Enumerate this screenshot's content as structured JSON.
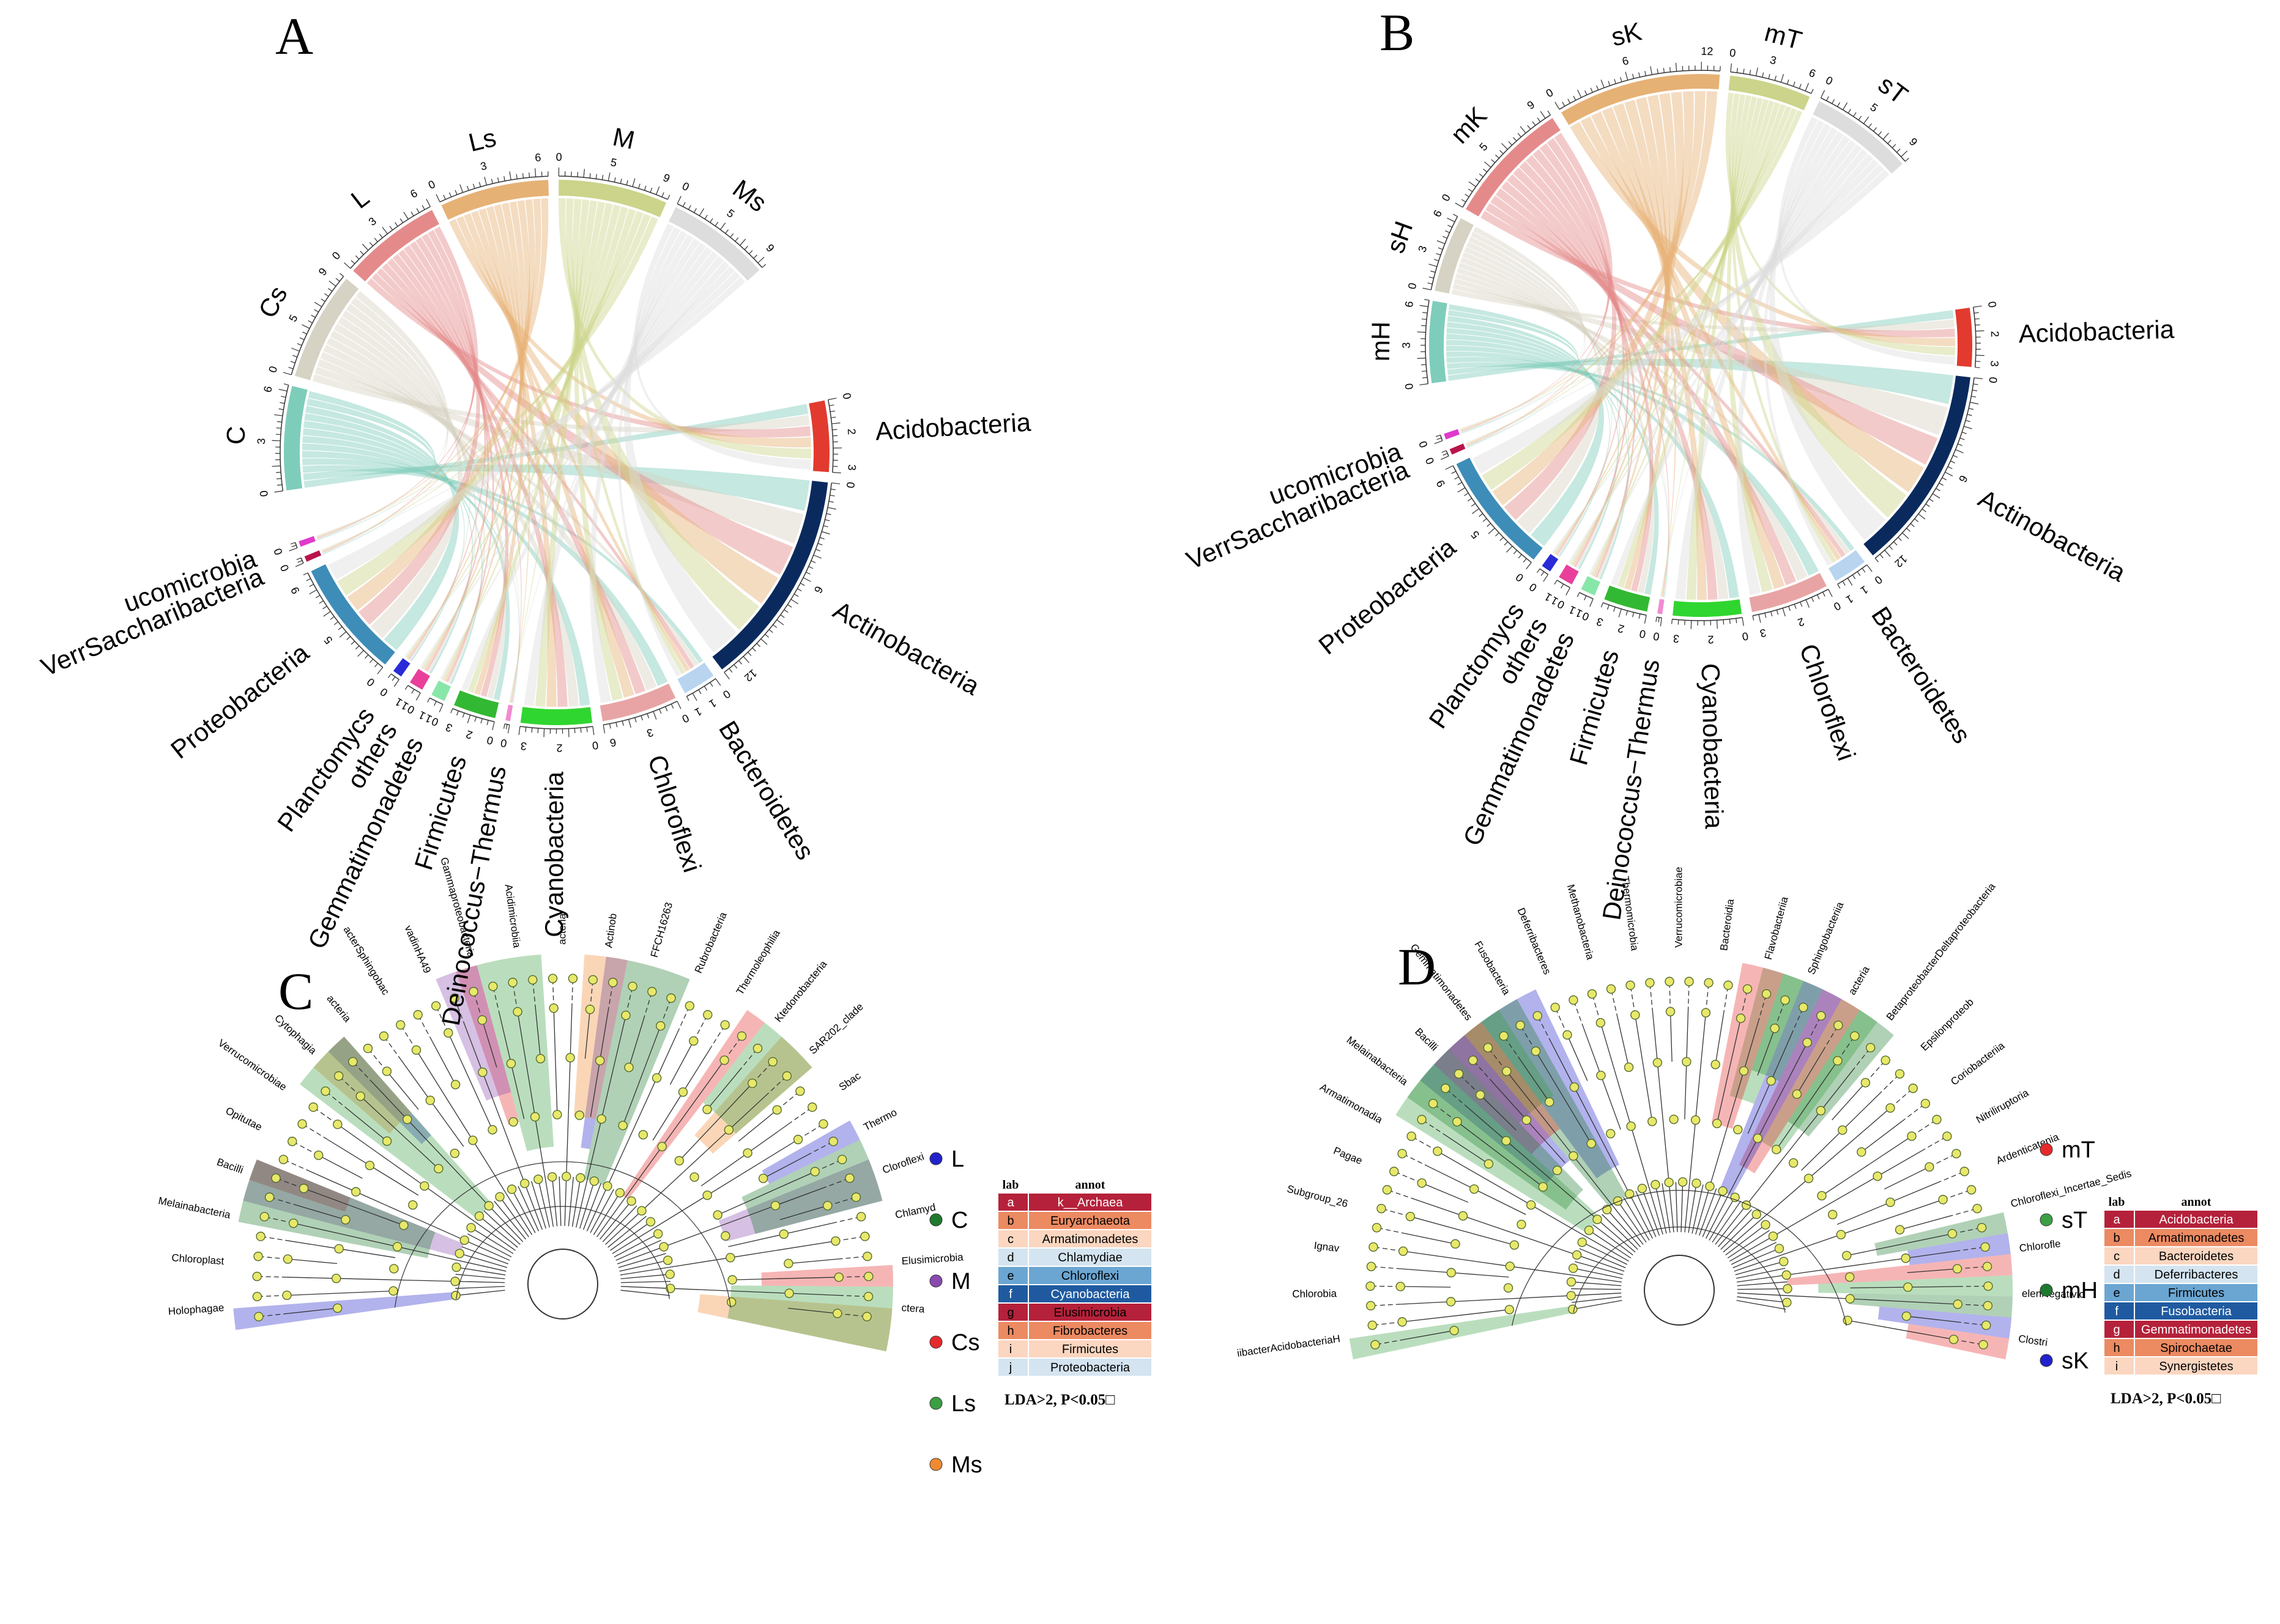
{
  "chart_data": [
    {
      "panel": "A",
      "type": "chord",
      "samples": [
        {
          "name": "C",
          "color": "#7ecdbb",
          "max": 6
        },
        {
          "name": "Cs",
          "color": "#d6d2c4",
          "max": 9
        },
        {
          "name": "L",
          "color": "#e58a8a",
          "max": 6
        },
        {
          "name": "Ls",
          "color": "#e6b175",
          "max": 6
        },
        {
          "name": "M",
          "color": "#cbd48a",
          "max": 9
        },
        {
          "name": "Ms",
          "color": "#dddddd",
          "max": 9
        }
      ],
      "taxa": [
        {
          "name": "Acidobacteria",
          "color": "#e23a2e",
          "max": 3
        },
        {
          "name": "Actinobacteria",
          "color": "#0a2a5e",
          "max": 12
        },
        {
          "name": "Bacteroidetes",
          "color": "#b8d4ef",
          "max": 1
        },
        {
          "name": "Chloroflexi",
          "color": "#e8a4a4",
          "max": 6
        },
        {
          "name": "Cyanobacteria",
          "color": "#2fd62f",
          "max": 3
        },
        {
          "name": "Deinococcus−Thermus",
          "color": "#f28ad0",
          "max": 0
        },
        {
          "name": "Firmicutes",
          "color": "#33b833",
          "max": 3
        },
        {
          "name": "Gemmatimonadetes",
          "color": "#88e6a8",
          "max": 1
        },
        {
          "name": "others",
          "color": "#e8409a",
          "max": 1
        },
        {
          "name": "Planctomycs",
          "color": "#2a2ad8",
          "max": 0
        },
        {
          "name": "Proteobacteria",
          "color": "#3d8db8",
          "max": 9
        },
        {
          "name": "VerrSaccharibacteria",
          "color": "#b8144a",
          "max": 0
        },
        {
          "name": "ucomicrobia",
          "color": "#e03acc",
          "max": 0
        }
      ]
    },
    {
      "panel": "B",
      "type": "chord",
      "samples": [
        {
          "name": "mH",
          "color": "#7ecdbb",
          "max": 6
        },
        {
          "name": "sH",
          "color": "#d6d2c4",
          "max": 6
        },
        {
          "name": "mK",
          "color": "#e58a8a",
          "max": 9
        },
        {
          "name": "sK",
          "color": "#e6b175",
          "max": 12
        },
        {
          "name": "mT",
          "color": "#cbd48a",
          "max": 6
        },
        {
          "name": "sT",
          "color": "#dddddd",
          "max": 9
        }
      ],
      "taxa": [
        {
          "name": "Acidobacteria",
          "color": "#e23a2e",
          "max": 3
        },
        {
          "name": "Actinobacteria",
          "color": "#0a2a5e",
          "max": 12
        },
        {
          "name": "Bacteroidetes",
          "color": "#b8d4ef",
          "max": 1
        },
        {
          "name": "Chloroflexi",
          "color": "#e8a4a4",
          "max": 3
        },
        {
          "name": "Cyanobacteria",
          "color": "#2fd62f",
          "max": 3
        },
        {
          "name": "Deinococcus−Thermus",
          "color": "#f28ad0",
          "max": 0
        },
        {
          "name": "Firmicutes",
          "color": "#33b833",
          "max": 3
        },
        {
          "name": "Gemmatimonadetes",
          "color": "#88e6a8",
          "max": 1
        },
        {
          "name": "others",
          "color": "#e8409a",
          "max": 1
        },
        {
          "name": "Planctomycs",
          "color": "#2a2ad8",
          "max": 0
        },
        {
          "name": "Proteobacteria",
          "color": "#3d8db8",
          "max": 9
        },
        {
          "name": "VerrSaccharibacteria",
          "color": "#b8144a",
          "max": 0
        },
        {
          "name": "ucomicrobia",
          "color": "#e03acc",
          "max": 0
        }
      ]
    },
    {
      "panel": "C",
      "type": "cladogram",
      "groups": [
        {
          "name": "L",
          "color": "#2222cc"
        },
        {
          "name": "C",
          "color": "#1e7a2e"
        },
        {
          "name": "M",
          "color": "#8a4ab0"
        },
        {
          "name": "Cs",
          "color": "#e62a2a"
        },
        {
          "name": "Ls",
          "color": "#3aa043"
        },
        {
          "name": "Ms",
          "color": "#f08a30"
        }
      ],
      "clade_labels": [
        "Holophagae",
        "Chloroplast",
        "Melainabacteria",
        "Bacilli",
        "Opitutae",
        "Verrucomicrobiae",
        "Cytophagia",
        "acteria",
        "acterSphingobac",
        "vadinHA49",
        "Gammaproteobacteria",
        "Acidimicrobiia",
        "acteria",
        "Actinob",
        "FFCH16263",
        "Rubrobacteria",
        "Thermoleophilia",
        "Ktedonobacteria",
        "SAR202_clade",
        "Sbac",
        "Thermo",
        "Cloroflexi",
        "Chlamyd",
        "Elusimicrobia",
        "ctera"
      ],
      "annotation_table": {
        "header": [
          "lab",
          "annot"
        ],
        "rows": [
          [
            "a",
            "k__Archaea"
          ],
          [
            "b",
            "Euryarchaeota"
          ],
          [
            "c",
            "Armatimonadetes"
          ],
          [
            "d",
            "Chlamydiae"
          ],
          [
            "e",
            "Chloroflexi"
          ],
          [
            "f",
            "Cyanobacteria"
          ],
          [
            "g",
            "Elusimicrobia"
          ],
          [
            "h",
            "Fibrobacteres"
          ],
          [
            "i",
            "Firmicutes"
          ],
          [
            "j",
            "Proteobacteria"
          ]
        ],
        "row_colors": [
          "#b5213a",
          "#ec8a62",
          "#fbd6c0",
          "#d4e4f0",
          "#6ba6d2",
          "#1f5aa0",
          "#b5213a",
          "#ec8a62",
          "#fbd6c0",
          "#d4e4f0"
        ],
        "text_colors": [
          "#ffffff",
          "#000000",
          "#000000",
          "#000000",
          "#000000",
          "#ffffff",
          "#000000",
          "#000000",
          "#000000",
          "#000000"
        ]
      },
      "note": "LDA>2, P<0.05□"
    },
    {
      "panel": "D",
      "type": "cladogram",
      "groups": [
        {
          "name": "mT",
          "color": "#e62a2a"
        },
        {
          "name": "sT",
          "color": "#3aa043"
        },
        {
          "name": "mH",
          "color": "#1e7a2e"
        },
        {
          "name": "sK",
          "color": "#2222cc"
        }
      ],
      "clade_labels": [
        "iibacterAcidobacteriaH",
        "Chlorobia",
        "Ignav",
        "Subgroup_26",
        "Pagae",
        "Armatimonadia",
        "Melainabacteria",
        "Bacilli",
        "Gemmatimonadetes",
        "Fusobacteria",
        "Deferribacteres",
        "Methanobacteria",
        "Thermomicrobia",
        "Verrucomicrobiae",
        "Bacteroidia",
        "Flavobacteriia",
        "Sphingobacteriia",
        "acteria",
        "BetaproteobacterDeltaproteobacteria",
        "Epsilonproteob",
        "Coriobacteriia",
        "Nitriliruptoria",
        "Ardenticatenia",
        "Chloroflexi_Incertae_Sedis",
        "Chlorofle",
        "elenNegativic",
        "Clostri"
      ],
      "annotation_table": {
        "header": [
          "lab",
          "annot"
        ],
        "rows": [
          [
            "a",
            "Acidobacteria"
          ],
          [
            "b",
            "Armatimonadetes"
          ],
          [
            "c",
            "Bacteroidetes"
          ],
          [
            "d",
            "Deferribacteres"
          ],
          [
            "e",
            "Firmicutes"
          ],
          [
            "f",
            "Fusobacteria"
          ],
          [
            "g",
            "Gemmatimonadetes"
          ],
          [
            "h",
            "Spirochaetae"
          ],
          [
            "i",
            "Synergistetes"
          ]
        ],
        "row_colors": [
          "#b5213a",
          "#ec8a62",
          "#fbd6c0",
          "#d4e4f0",
          "#6ba6d2",
          "#1f5aa0",
          "#b5213a",
          "#ec8a62",
          "#fbd6c0"
        ],
        "text_colors": [
          "#ffffff",
          "#000000",
          "#000000",
          "#000000",
          "#000000",
          "#ffffff",
          "#ffffff",
          "#000000",
          "#000000"
        ]
      },
      "note": "LDA>2, P<0.05□"
    }
  ]
}
